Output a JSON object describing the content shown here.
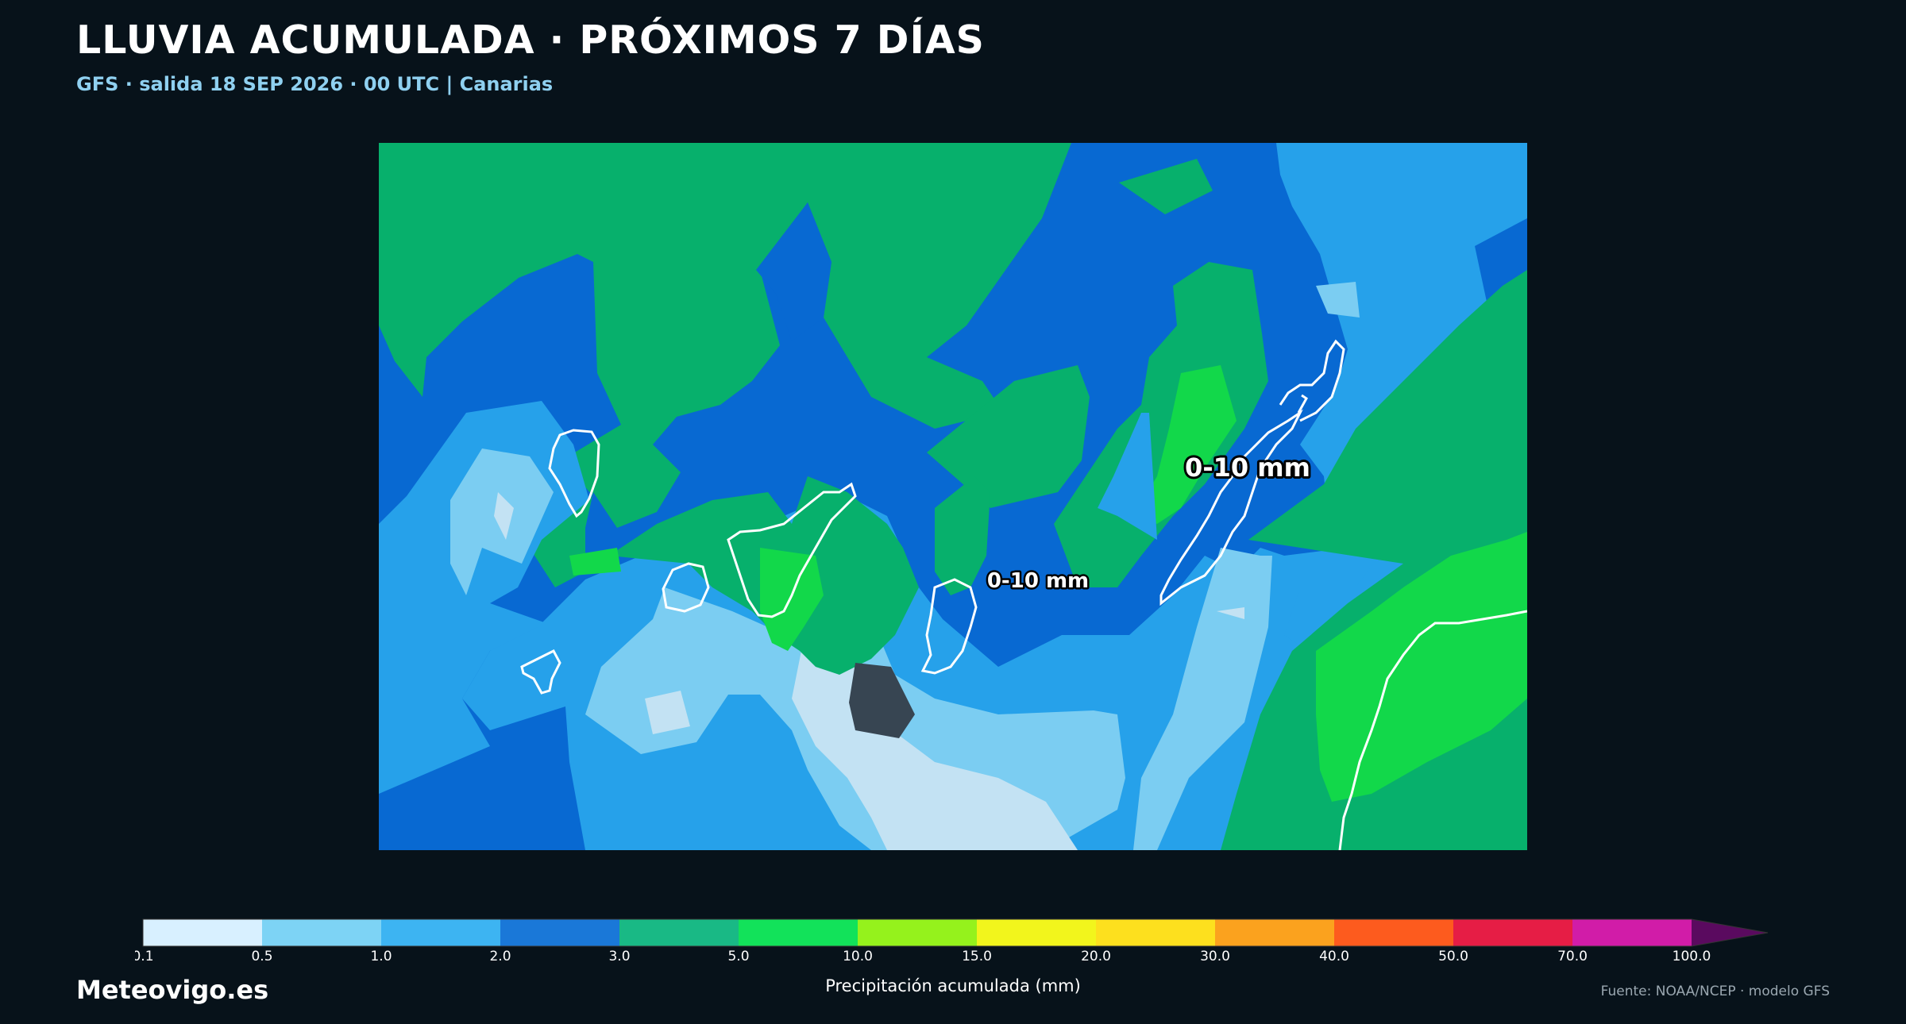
{
  "title": "LLUVIA ACUMULADA · PRÓXIMOS 7 DÍAS",
  "subtitle": "GFS · salida 18 SEP 2026 · 00 UTC  |  Canarias",
  "map": {
    "labels": [
      {
        "name": "label-west",
        "text": "0-10 mm"
      },
      {
        "name": "label-east",
        "text": "0-10 mm"
      }
    ]
  },
  "colorbar": {
    "label": "Precipitación acumulada (mm)",
    "ticks": [
      "0.1",
      "0.5",
      "1.0",
      "2.0",
      "3.0",
      "5.0",
      "10.0",
      "15.0",
      "20.0",
      "30.0",
      "40.0",
      "50.0",
      "70.0",
      "100.0"
    ],
    "colors": [
      "#d8f0ff",
      "#7dd3f5",
      "#3db4f2",
      "#1a78d8",
      "#19b985",
      "#12e25a",
      "#95f21c",
      "#f2f51c",
      "#fde01e",
      "#fba21e",
      "#fd5b1e",
      "#e61d45",
      "#d11ca8"
    ],
    "extend_color": "#5a0a5f"
  },
  "brand": "Meteovigo.es",
  "source": "Fuente: NOAA/NCEP · modelo GFS"
}
